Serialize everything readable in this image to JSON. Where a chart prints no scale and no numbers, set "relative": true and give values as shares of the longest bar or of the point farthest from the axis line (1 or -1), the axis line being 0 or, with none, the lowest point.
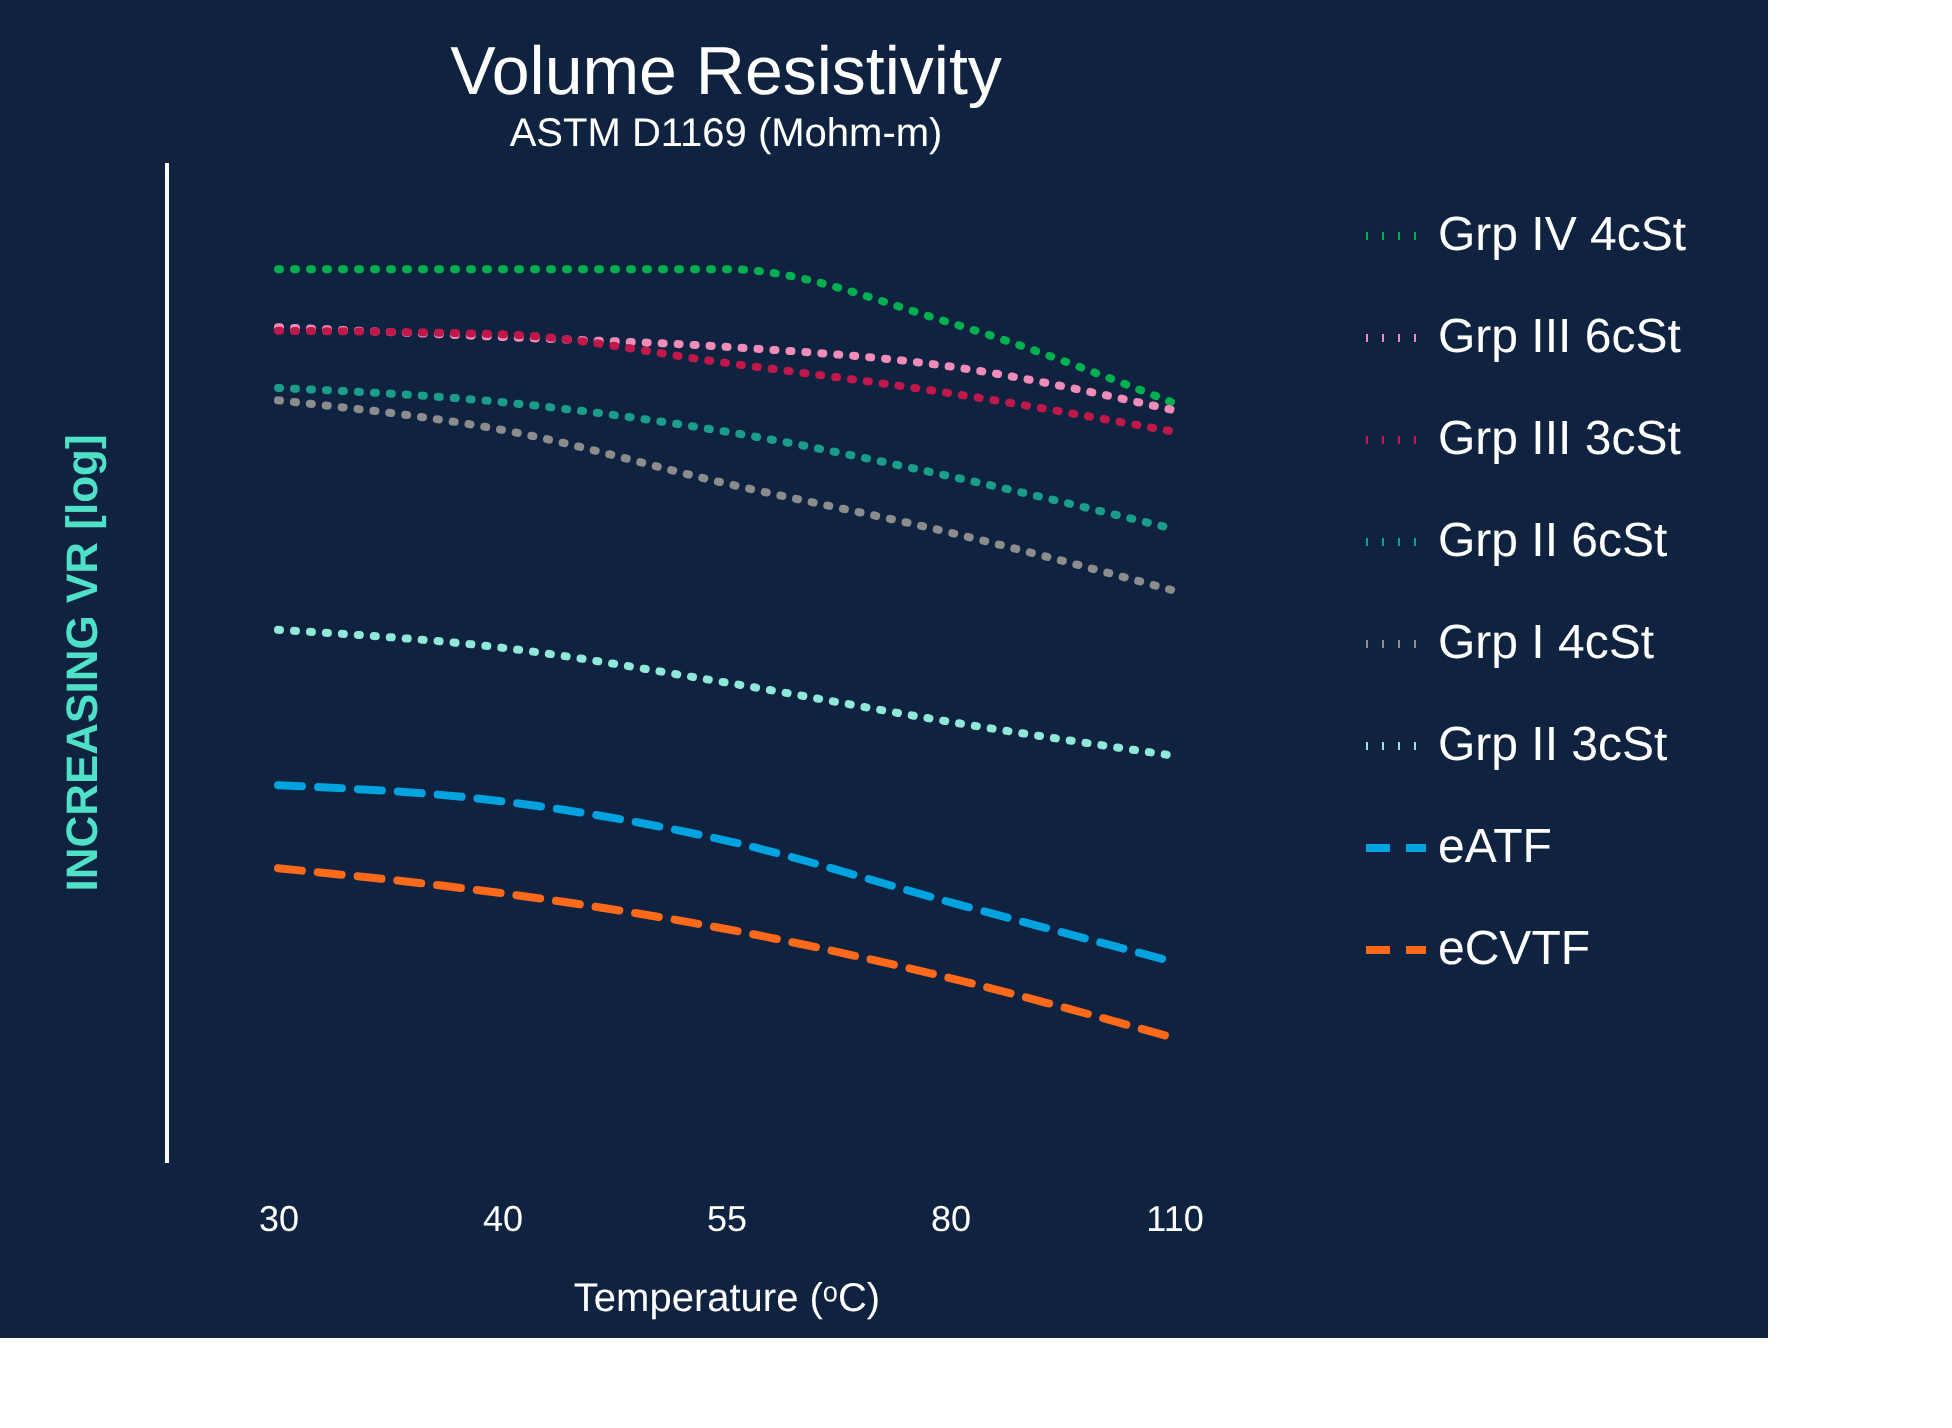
{
  "chart_data": {
    "type": "line",
    "title": "Volume Resistivity",
    "subtitle": "ASTM D1169 (Mohm-m)",
    "xlabel": "Temperature (ᵒC)",
    "ylabel": "INCREASING VR [log]",
    "relative": true,
    "grid": false,
    "legend": "right",
    "categories": [
      "30",
      "40",
      "55",
      "80",
      "110"
    ],
    "series": [
      {
        "name": "Grp IV 4cSt",
        "color": "#00b050",
        "line_style": "dotted",
        "values": [
          1.0,
          1.0,
          1.0,
          0.94,
          0.85
        ]
      },
      {
        "name": "Grp III 6cSt",
        "color": "#f08cb8",
        "line_style": "dotted",
        "values": [
          0.935,
          0.924,
          0.913,
          0.891,
          0.842
        ]
      },
      {
        "name": "Grp III 3cSt",
        "color": "#c0184a",
        "line_style": "dotted",
        "values": [
          0.931,
          0.927,
          0.895,
          0.861,
          0.818
        ]
      },
      {
        "name": "Grp II 6cSt",
        "color": "#1a9e8a",
        "line_style": "dotted",
        "values": [
          0.867,
          0.851,
          0.818,
          0.768,
          0.709
        ]
      },
      {
        "name": "Grp I 4cSt",
        "color": "#8c8c8c",
        "line_style": "dotted",
        "values": [
          0.853,
          0.82,
          0.76,
          0.705,
          0.64
        ]
      },
      {
        "name": "Grp II 3cSt",
        "color": "#8fe8d8",
        "line_style": "dotted",
        "values": [
          0.596,
          0.576,
          0.537,
          0.493,
          0.455
        ]
      },
      {
        "name": "eATF",
        "color": "#00a2e0",
        "line_style": "dashed",
        "values": [
          0.422,
          0.404,
          0.36,
          0.291,
          0.224
        ]
      },
      {
        "name": "eCVTF",
        "color": "#ff6a1a",
        "line_style": "dashed",
        "values": [
          0.329,
          0.301,
          0.261,
          0.206,
          0.139
        ]
      }
    ]
  }
}
